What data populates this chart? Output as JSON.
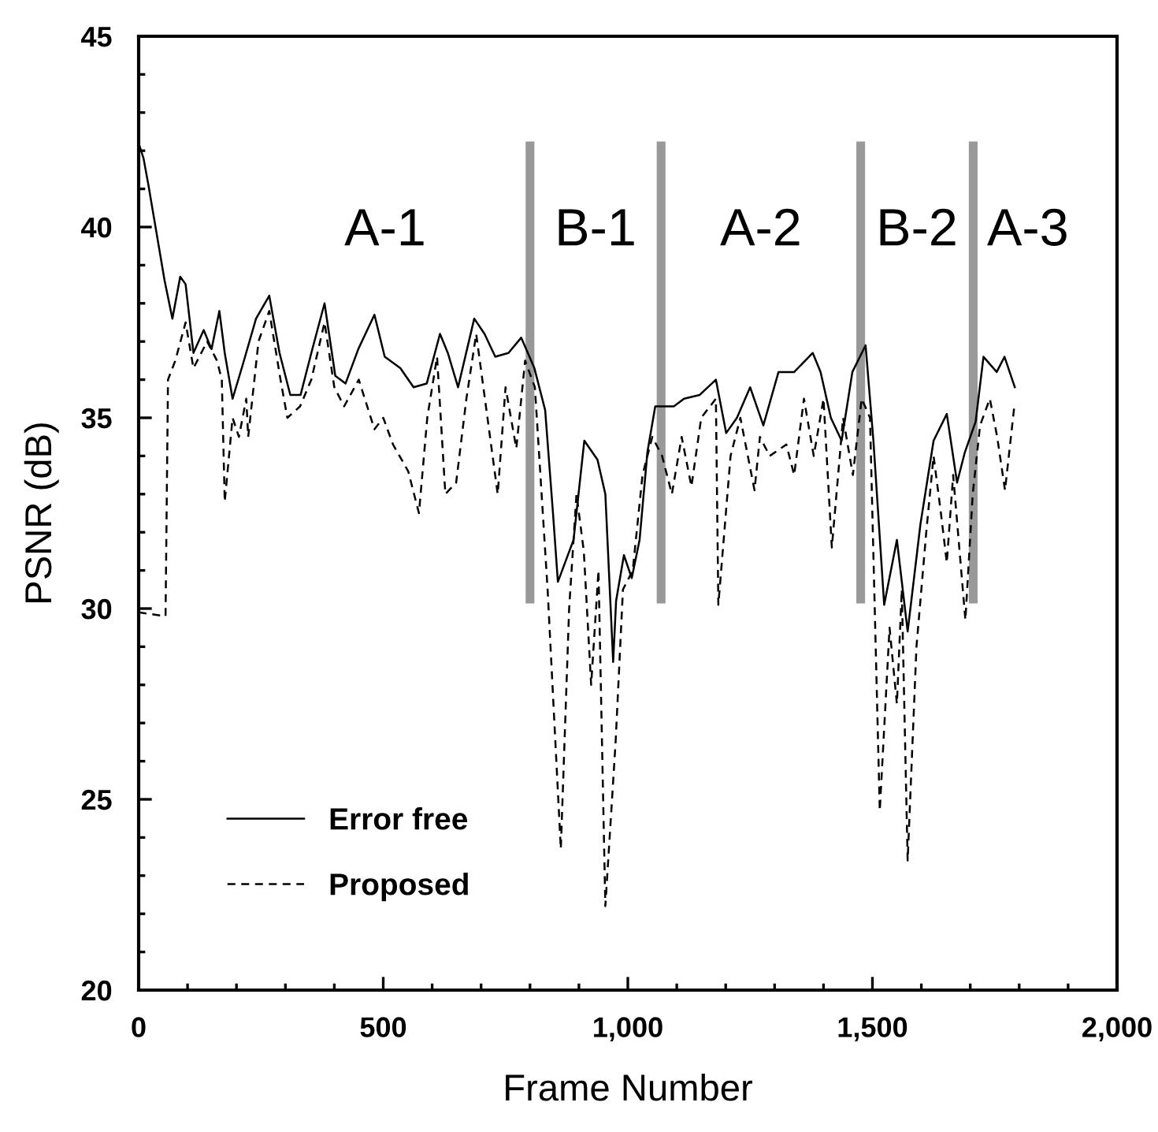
{
  "chart_data": {
    "type": "line",
    "xlabel": "Frame Number",
    "ylabel": "PSNR (dB)",
    "xlim": [
      0,
      2000
    ],
    "xticks": [
      0,
      500,
      {
        "value": 1000,
        "label": "1,000"
      },
      {
        "value": 1500,
        "label": "1,500"
      },
      {
        "value": 2000,
        "label": "2,000"
      }
    ],
    "ylim": [
      20,
      45
    ],
    "yticks": [
      20,
      25,
      30,
      35,
      40,
      45
    ],
    "grid": false,
    "legend": "bottom left",
    "series": [
      {
        "name": "Error free",
        "color": "#000000",
        "line_style": "solid",
        "x": [
          0,
          10,
          20,
          53,
          69,
          85,
          96,
          112,
          133,
          149,
          165,
          176,
          192,
          213,
          240,
          267,
          288,
          310,
          331,
          353,
          380,
          402,
          423,
          449,
          482,
          503,
          535,
          562,
          589,
          616,
          632,
          653,
          686,
          707,
          729,
          756,
          782,
          809,
          831,
          847,
          857,
          889,
          911,
          938,
          954,
          970,
          976,
          992,
          1008,
          1024,
          1040,
          1056,
          1094,
          1115,
          1147,
          1180,
          1201,
          1223,
          1250,
          1277,
          1308,
          1340,
          1378,
          1394,
          1415,
          1437,
          1459,
          1486,
          1502,
          1524,
          1550,
          1572,
          1598,
          1625,
          1652,
          1673,
          1689,
          1711,
          1727,
          1754,
          1770,
          1791
        ],
        "values": [
          42.2,
          41.8,
          41.1,
          38.6,
          37.6,
          38.7,
          38.5,
          36.7,
          37.3,
          36.8,
          37.8,
          36.7,
          35.5,
          36.4,
          37.6,
          38.2,
          36.7,
          35.6,
          35.6,
          36.7,
          38.0,
          36.1,
          35.9,
          36.8,
          37.7,
          36.6,
          36.3,
          35.8,
          35.9,
          37.2,
          36.7,
          35.8,
          37.6,
          37.2,
          36.6,
          36.7,
          37.1,
          36.3,
          35.2,
          32.5,
          30.7,
          31.8,
          34.4,
          33.9,
          33.0,
          28.6,
          30.2,
          31.4,
          30.8,
          31.8,
          34.1,
          35.3,
          35.3,
          35.5,
          35.6,
          36.0,
          34.6,
          35.0,
          35.8,
          34.8,
          36.2,
          36.2,
          36.7,
          36.2,
          35.0,
          34.4,
          36.2,
          36.9,
          34.4,
          30.1,
          31.8,
          29.4,
          32.2,
          34.4,
          35.1,
          33.3,
          34.1,
          34.9,
          36.6,
          36.2,
          36.6,
          35.8
        ]
      },
      {
        "name": "Proposed",
        "color": "#000000",
        "line_style": "dashed",
        "x": [
          0,
          55,
          60,
          75,
          96,
          112,
          140,
          160,
          170,
          176,
          192,
          205,
          220,
          224,
          245,
          267,
          290,
          304,
          330,
          353,
          380,
          400,
          420,
          450,
          482,
          500,
          520,
          551,
          573,
          590,
          610,
          627,
          649,
          670,
          690,
          734,
          750,
          772,
          790,
          810,
          836,
          863,
          880,
          895,
          910,
          925,
          940,
          954,
          975,
          990,
          1010,
          1030,
          1050,
          1070,
          1090,
          1110,
          1130,
          1150,
          1180,
          1185,
          1210,
          1230,
          1259,
          1270,
          1290,
          1324,
          1340,
          1360,
          1380,
          1400,
          1417,
          1440,
          1460,
          1478,
          1495,
          1515,
          1535,
          1550,
          1560,
          1572,
          1590,
          1610,
          1625,
          1640,
          1652,
          1665,
          1690,
          1705,
          1720,
          1740,
          1755,
          1771,
          1790
        ],
        "values": [
          29.9,
          29.8,
          36.0,
          36.5,
          37.5,
          36.3,
          37.0,
          36.5,
          36.0,
          32.8,
          35.0,
          34.5,
          35.5,
          34.5,
          37.0,
          37.8,
          36.0,
          35.0,
          35.3,
          36.0,
          37.5,
          35.8,
          35.3,
          36.0,
          34.7,
          35.0,
          34.3,
          33.6,
          32.5,
          35.0,
          36.6,
          33.0,
          33.3,
          35.5,
          37.2,
          33.0,
          35.8,
          34.2,
          36.5,
          35.8,
          30.5,
          23.7,
          30.0,
          33.0,
          31.5,
          28.0,
          31.0,
          22.2,
          26.5,
          30.5,
          31.0,
          33.5,
          34.5,
          34.0,
          33.0,
          34.5,
          33.2,
          35.0,
          35.5,
          30.1,
          34.0,
          35.0,
          33.1,
          34.5,
          34.0,
          34.3,
          33.5,
          35.5,
          34.0,
          35.5,
          31.6,
          35.0,
          33.5,
          35.5,
          35.0,
          24.7,
          29.5,
          27.5,
          30.5,
          23.4,
          29.0,
          32.0,
          34.0,
          32.5,
          31.2,
          33.5,
          29.7,
          33.0,
          34.8,
          35.5,
          34.5,
          33.1,
          35.3
        ]
      }
    ],
    "ref_lines": [
      {
        "axis": "x",
        "value": 800,
        "color": "#999999"
      },
      {
        "axis": "x",
        "value": 1068,
        "color": "#999999"
      },
      {
        "axis": "x",
        "value": 1476,
        "color": "#999999"
      },
      {
        "axis": "x",
        "value": 1706,
        "color": "#999999"
      }
    ],
    "annotations": [
      "A-1",
      "B-1",
      "A-2",
      "B-2",
      "A-3"
    ]
  }
}
